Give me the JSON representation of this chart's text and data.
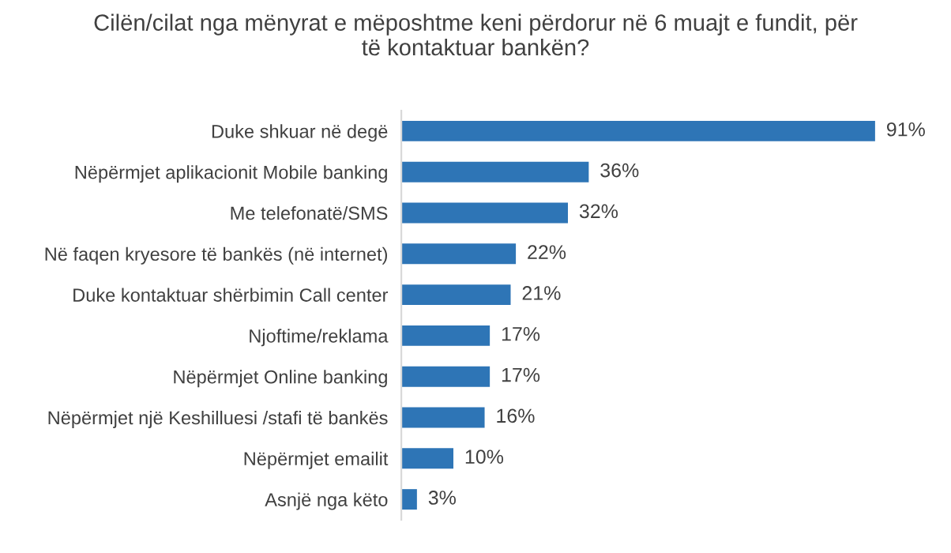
{
  "chart_data": {
    "type": "bar",
    "orientation": "horizontal",
    "title": "Cilën/cilat nga mënyrat e mëposhtme keni përdorur në 6 muajt e fundit, për\ntë kontaktuar bankën?",
    "categories": [
      "Duke shkuar në degë",
      "Nëpërmjet aplikacionit Mobile banking",
      "Me telefonatë/SMS",
      "Në faqen kryesore të bankës (në internet)",
      "Duke kontaktuar shërbimin Call center",
      "Njoftime/reklama",
      "Nëpërmjet Online banking",
      "Nëpërmjet një Keshilluesi /stafi të bankës",
      "Nëpërmjet emailit",
      "Asnjë nga këto"
    ],
    "values": [
      91,
      36,
      32,
      22,
      21,
      17,
      17,
      16,
      10,
      3
    ],
    "value_labels": [
      "91%",
      "36%",
      "32%",
      "22%",
      "21%",
      "17%",
      "17%",
      "16%",
      "10%",
      "3%"
    ],
    "color": "#2e75b6",
    "grid": false,
    "legend": false
  }
}
